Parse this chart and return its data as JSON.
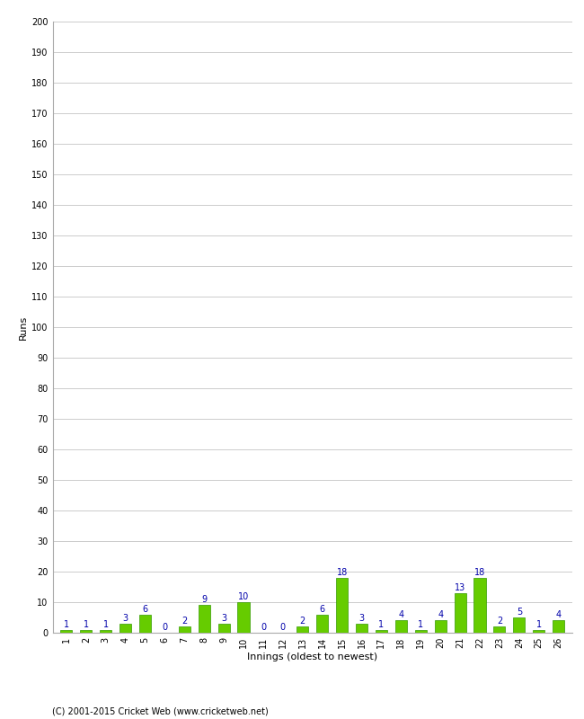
{
  "innings": [
    1,
    2,
    3,
    4,
    5,
    6,
    7,
    8,
    9,
    10,
    11,
    12,
    13,
    14,
    15,
    16,
    17,
    18,
    19,
    20,
    21,
    22,
    23,
    24,
    25,
    26
  ],
  "runs": [
    1,
    1,
    1,
    3,
    6,
    0,
    2,
    9,
    3,
    10,
    0,
    0,
    2,
    6,
    18,
    3,
    1,
    4,
    1,
    4,
    13,
    18,
    2,
    5,
    1,
    4
  ],
  "bar_color": "#66cc00",
  "bar_edge_color": "#339900",
  "label_color": "#0000aa",
  "ylabel": "Runs",
  "xlabel": "Innings (oldest to newest)",
  "ylim": [
    0,
    200
  ],
  "yticks": [
    0,
    10,
    20,
    30,
    40,
    50,
    60,
    70,
    80,
    90,
    100,
    110,
    120,
    130,
    140,
    150,
    160,
    170,
    180,
    190,
    200
  ],
  "grid_color": "#cccccc",
  "bg_color": "#ffffff",
  "footer": "(C) 2001-2015 Cricket Web (www.cricketweb.net)",
  "label_fontsize": 8,
  "tick_fontsize": 7,
  "footer_fontsize": 7,
  "bar_label_fontsize": 7
}
